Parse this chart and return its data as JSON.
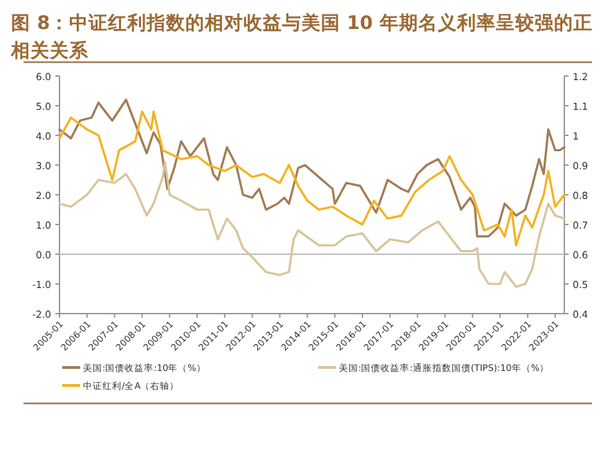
{
  "chart_data": {
    "type": "line",
    "title": "图 8：中证红利指数的相对收益与美国 10 年期名义利率呈较强的正相关关系",
    "xlim": [
      "2005-01",
      "2023-05"
    ],
    "xticks": [
      "2005-01",
      "2006-01",
      "2007-01",
      "2008-01",
      "2009-01",
      "2010-01",
      "2011-01",
      "2012-01",
      "2013-01",
      "2014-01",
      "2015-01",
      "2016-01",
      "2017-01",
      "2018-01",
      "2019-01",
      "2020-01",
      "2021-01",
      "2022-01",
      "2023-01"
    ],
    "ylim": [
      -2,
      6
    ],
    "yticks": [
      {
        "value": -2,
        "label": "-2.0"
      },
      {
        "value": -1,
        "label": "-1.0"
      },
      {
        "value": 0,
        "label": "0.0"
      },
      {
        "value": 1,
        "label": "1.0"
      },
      {
        "value": 2,
        "label": "2.0"
      },
      {
        "value": 3,
        "label": "3.0"
      },
      {
        "value": 4,
        "label": "4.0"
      },
      {
        "value": 5,
        "label": "5.0"
      },
      {
        "value": 6,
        "label": "6.0"
      }
    ],
    "y2lim": [
      0.4,
      1.2
    ],
    "y2ticks": [
      0.4,
      0.5,
      0.6,
      0.7,
      0.8,
      0.9,
      1,
      1.1,
      1.2
    ],
    "ref_lines": [
      {
        "axis": "y",
        "value": 0,
        "color": "#bfbfbf"
      }
    ],
    "grid": false,
    "legend": "bottom",
    "line_style": "solid",
    "series": [
      {
        "name": "美国:国债收益率:10年（%）",
        "color": "#a27c55",
        "x": [
          "2005-01",
          "2005-06",
          "2005-10",
          "2006-03",
          "2006-06",
          "2006-12",
          "2007-06",
          "2007-09",
          "2008-01",
          "2008-03",
          "2008-06",
          "2008-09",
          "2008-12",
          "2009-03",
          "2009-06",
          "2009-10",
          "2010-04",
          "2010-08",
          "2010-10",
          "2011-02",
          "2011-06",
          "2011-09",
          "2012-01",
          "2012-04",
          "2012-07",
          "2012-12",
          "2013-03",
          "2013-05",
          "2013-09",
          "2013-12",
          "2014-06",
          "2014-12",
          "2015-01",
          "2015-06",
          "2015-12",
          "2016-07",
          "2016-12",
          "2017-06",
          "2017-09",
          "2018-01",
          "2018-05",
          "2018-10",
          "2019-03",
          "2019-08",
          "2019-12",
          "2020-02",
          "2020-03",
          "2020-08",
          "2020-12",
          "2021-03",
          "2021-08",
          "2021-12",
          "2022-03",
          "2022-06",
          "2022-08",
          "2022-10",
          "2023-01",
          "2023-03",
          "2023-05"
        ],
        "values": [
          4.2,
          3.9,
          4.5,
          4.6,
          5.1,
          4.5,
          5.2,
          4.6,
          3.8,
          3.4,
          4.1,
          3.7,
          2.2,
          2.9,
          3.8,
          3.3,
          3.9,
          2.7,
          2.5,
          3.6,
          3.0,
          2.0,
          1.9,
          2.2,
          1.5,
          1.7,
          1.9,
          1.7,
          2.9,
          3.0,
          2.6,
          2.2,
          1.7,
          2.4,
          2.3,
          1.4,
          2.5,
          2.2,
          2.1,
          2.7,
          3.0,
          3.2,
          2.6,
          1.5,
          1.9,
          1.6,
          0.6,
          0.6,
          0.9,
          1.7,
          1.3,
          1.5,
          2.3,
          3.2,
          2.7,
          4.2,
          3.5,
          3.5,
          3.6
        ]
      },
      {
        "name": "美国:国债收益率:通胀指数国债(TIPS):10年（%）",
        "color": "#d9c49c",
        "x": [
          "2005-01",
          "2005-06",
          "2006-01",
          "2006-06",
          "2007-01",
          "2007-06",
          "2007-10",
          "2008-03",
          "2008-06",
          "2008-10",
          "2008-11",
          "2009-01",
          "2009-06",
          "2010-01",
          "2010-06",
          "2010-10",
          "2011-02",
          "2011-06",
          "2011-09",
          "2012-01",
          "2012-07",
          "2013-01",
          "2013-05",
          "2013-07",
          "2013-09",
          "2014-06",
          "2015-01",
          "2015-06",
          "2016-01",
          "2016-07",
          "2017-01",
          "2017-09",
          "2018-03",
          "2018-10",
          "2019-03",
          "2019-08",
          "2020-01",
          "2020-03",
          "2020-04",
          "2020-08",
          "2021-01",
          "2021-03",
          "2021-08",
          "2021-12",
          "2022-03",
          "2022-06",
          "2022-10",
          "2023-01",
          "2023-05"
        ],
        "values": [
          1.7,
          1.6,
          2.0,
          2.5,
          2.4,
          2.7,
          2.2,
          1.3,
          1.7,
          2.6,
          3.1,
          2.0,
          1.8,
          1.5,
          1.5,
          0.5,
          1.2,
          0.8,
          0.2,
          -0.1,
          -0.6,
          -0.7,
          -0.6,
          0.5,
          0.8,
          0.3,
          0.3,
          0.6,
          0.7,
          0.1,
          0.5,
          0.4,
          0.8,
          1.1,
          0.6,
          0.1,
          0.1,
          0.2,
          -0.5,
          -1.0,
          -1.0,
          -0.6,
          -1.1,
          -1.0,
          -0.5,
          0.6,
          1.7,
          1.3,
          1.2
        ]
      },
      {
        "name": "中证红利/全A（右轴）",
        "color": "#f5b220",
        "axis": "y2",
        "x": [
          "2005-01",
          "2005-06",
          "2006-01",
          "2006-06",
          "2006-12",
          "2007-03",
          "2007-10",
          "2008-01",
          "2008-05",
          "2008-06",
          "2008-10",
          "2009-06",
          "2010-01",
          "2010-06",
          "2011-01",
          "2011-06",
          "2012-01",
          "2012-06",
          "2013-01",
          "2013-05",
          "2013-09",
          "2014-01",
          "2014-06",
          "2014-12",
          "2015-06",
          "2016-01",
          "2016-06",
          "2016-12",
          "2017-06",
          "2017-12",
          "2018-06",
          "2018-12",
          "2019-03",
          "2019-08",
          "2020-01",
          "2020-06",
          "2020-12",
          "2021-03",
          "2021-06",
          "2021-08",
          "2021-12",
          "2022-03",
          "2022-08",
          "2022-10",
          "2023-01",
          "2023-05"
        ],
        "values": [
          0.99,
          1.06,
          1.02,
          1.0,
          0.85,
          0.95,
          0.98,
          1.08,
          1.02,
          1.08,
          0.95,
          0.92,
          0.93,
          0.9,
          0.88,
          0.9,
          0.86,
          0.87,
          0.84,
          0.9,
          0.83,
          0.78,
          0.75,
          0.76,
          0.73,
          0.7,
          0.78,
          0.72,
          0.73,
          0.81,
          0.85,
          0.88,
          0.93,
          0.85,
          0.8,
          0.68,
          0.7,
          0.66,
          0.75,
          0.63,
          0.73,
          0.69,
          0.8,
          0.88,
          0.76,
          0.8
        ]
      }
    ]
  }
}
